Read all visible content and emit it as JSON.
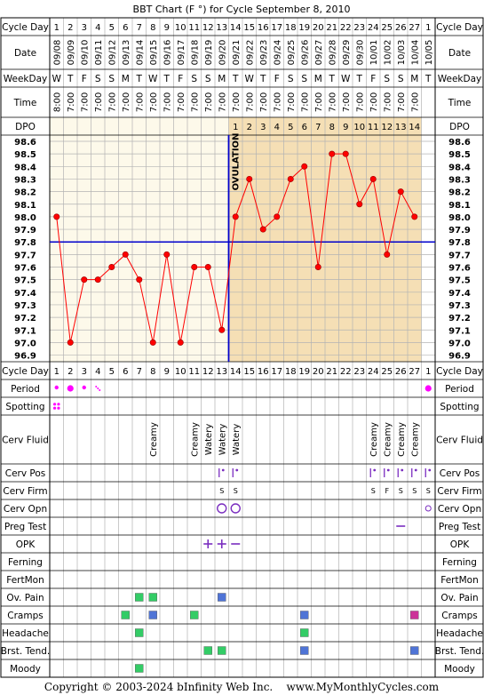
{
  "chart_data": {
    "type": "line",
    "title": "BBT Chart (F °) for Cycle September 8, 2010",
    "footer": "Copyright © 2003-2024 bInfinity Web Inc.    www.MyMonthlyCycles.com",
    "ovulation_label": "OVULATION",
    "ovulation_after_day": 13,
    "row_labels": {
      "cycle_day": "Cycle Day",
      "date": "Date",
      "weekday": "WeekDay",
      "time": "Time",
      "dpo": "DPO",
      "cycle_day_bottom": "Cycle Day"
    },
    "cycle_days": [
      "1",
      "2",
      "3",
      "4",
      "5",
      "6",
      "7",
      "8",
      "9",
      "10",
      "11",
      "12",
      "13",
      "14",
      "15",
      "16",
      "17",
      "18",
      "19",
      "20",
      "21",
      "22",
      "23",
      "24",
      "25",
      "26",
      "27",
      "1"
    ],
    "dates": [
      "09/08",
      "09/09",
      "09/10",
      "09/11",
      "09/12",
      "09/13",
      "09/14",
      "09/15",
      "09/16",
      "09/17",
      "09/18",
      "09/19",
      "09/20",
      "09/21",
      "09/22",
      "09/23",
      "09/24",
      "09/25",
      "09/26",
      "09/27",
      "09/28",
      "09/29",
      "09/30",
      "10/01",
      "10/02",
      "10/03",
      "10/04",
      "10/05"
    ],
    "weekdays": [
      "W",
      "T",
      "F",
      "S",
      "S",
      "M",
      "T",
      "W",
      "T",
      "F",
      "S",
      "S",
      "M",
      "T",
      "W",
      "T",
      "F",
      "S",
      "S",
      "M",
      "T",
      "W",
      "T",
      "F",
      "S",
      "S",
      "M",
      "T"
    ],
    "times": [
      "8:00",
      "7:00",
      "7:00",
      "7:00",
      "7:00",
      "7:00",
      "7:00",
      "7:00",
      "7:00",
      "7:00",
      "7:00",
      "7:00",
      "7:00",
      "7:00",
      "7:00",
      "7:00",
      "7:00",
      "7:00",
      "7:00",
      "7:00",
      "7:00",
      "7:00",
      "7:00",
      "7:00",
      "7:00",
      "7:00",
      "7:00",
      ""
    ],
    "dpo": [
      "",
      "",
      "",
      "",
      "",
      "",
      "",
      "",
      "",
      "",
      "",
      "",
      "",
      "1",
      "2",
      "3",
      "4",
      "5",
      "6",
      "7",
      "8",
      "9",
      "10",
      "11",
      "12",
      "13",
      "14",
      ""
    ],
    "y_ticks": [
      "98.6",
      "98.5",
      "98.4",
      "98.3",
      "98.2",
      "98.1",
      "98.0",
      "97.9",
      "97.8",
      "97.7",
      "97.6",
      "97.5",
      "97.4",
      "97.3",
      "97.2",
      "97.1",
      "97.0",
      "96.9"
    ],
    "ylim": [
      96.9,
      98.6
    ],
    "coverline": 97.8,
    "temperatures": [
      98.0,
      97.0,
      97.5,
      97.5,
      97.6,
      97.7,
      97.5,
      97.0,
      97.7,
      97.0,
      97.6,
      97.6,
      97.1,
      98.0,
      98.3,
      97.9,
      98.0,
      98.3,
      98.4,
      97.6,
      98.5,
      98.5,
      98.1,
      98.3,
      97.7,
      98.2,
      98.0,
      null
    ],
    "colors": {
      "line": "#ff0000",
      "ovulation": "#0000cc",
      "coverline": "#0000cc",
      "pre_bg": "#fdf9ea",
      "post_bg": "#f5dfb5",
      "grid": "#b3b3b3",
      "period": "#ff00ff",
      "green": "#33cc66",
      "blue": "#4f74d6",
      "magenta": "#cc3399",
      "purple": "#7a2dbf"
    },
    "observation_rows": [
      {
        "key": "period",
        "label": "Period",
        "items": [
          {
            "day": 1,
            "mark": "dot-s"
          },
          {
            "day": 2,
            "mark": "dot-m"
          },
          {
            "day": 3,
            "mark": "dot-s"
          },
          {
            "day": 4,
            "mark": "dots-tiny"
          },
          {
            "day": 28,
            "mark": "dot-m"
          }
        ]
      },
      {
        "key": "spotting",
        "label": "Spotting",
        "items": [
          {
            "day": 1,
            "mark": "dots-4"
          }
        ]
      },
      {
        "key": "cerv_fluid",
        "label": "Cerv Fluid",
        "items": [
          {
            "day": 8,
            "text": "Creamy"
          },
          {
            "day": 11,
            "text": "Creamy"
          },
          {
            "day": 12,
            "text": "Watery"
          },
          {
            "day": 13,
            "text": "Watery"
          },
          {
            "day": 14,
            "text": "Watery"
          },
          {
            "day": 24,
            "text": "Creamy"
          },
          {
            "day": 25,
            "text": "Creamy"
          },
          {
            "day": 26,
            "text": "Creamy"
          },
          {
            "day": 27,
            "text": "Creamy"
          }
        ]
      },
      {
        "key": "cerv_pos",
        "label": "Cerv Pos",
        "items": [
          {
            "day": 13,
            "mark": "pos"
          },
          {
            "day": 14,
            "mark": "pos"
          },
          {
            "day": 24,
            "mark": "pos"
          },
          {
            "day": 25,
            "mark": "pos"
          },
          {
            "day": 26,
            "mark": "pos"
          },
          {
            "day": 27,
            "mark": "pos"
          },
          {
            "day": 28,
            "mark": "pos"
          }
        ]
      },
      {
        "key": "cerv_firm",
        "label": "Cerv Firm",
        "items": [
          {
            "day": 13,
            "text": "S"
          },
          {
            "day": 14,
            "text": "S"
          },
          {
            "day": 24,
            "text": "S"
          },
          {
            "day": 25,
            "text": "F"
          },
          {
            "day": 26,
            "text": "S"
          },
          {
            "day": 27,
            "text": "S"
          },
          {
            "day": 28,
            "text": "S"
          }
        ]
      },
      {
        "key": "cerv_opn",
        "label": "Cerv Opn",
        "items": [
          {
            "day": 13,
            "mark": "ring-l"
          },
          {
            "day": 14,
            "mark": "ring-l"
          },
          {
            "day": 28,
            "mark": "ring-s"
          }
        ]
      },
      {
        "key": "preg_test",
        "label": "Preg Test",
        "items": [
          {
            "day": 26,
            "mark": "minus"
          }
        ]
      },
      {
        "key": "opk",
        "label": "OPK",
        "items": [
          {
            "day": 12,
            "mark": "plus"
          },
          {
            "day": 13,
            "mark": "plus"
          },
          {
            "day": 14,
            "mark": "minus"
          }
        ]
      },
      {
        "key": "ferning",
        "label": "Ferning",
        "items": []
      },
      {
        "key": "fertmon",
        "label": "FertMon",
        "items": []
      },
      {
        "key": "ov_pain",
        "label": "Ov. Pain",
        "items": [
          {
            "day": 7,
            "mark": "sq-green"
          },
          {
            "day": 8,
            "mark": "sq-green"
          },
          {
            "day": 13,
            "mark": "sq-blue"
          }
        ]
      },
      {
        "key": "cramps",
        "label": "Cramps",
        "items": [
          {
            "day": 6,
            "mark": "sq-green"
          },
          {
            "day": 8,
            "mark": "sq-blue"
          },
          {
            "day": 11,
            "mark": "sq-green"
          },
          {
            "day": 19,
            "mark": "sq-blue"
          },
          {
            "day": 27,
            "mark": "sq-magenta"
          }
        ]
      },
      {
        "key": "headache",
        "label": "Headache",
        "items": [
          {
            "day": 7,
            "mark": "sq-green"
          },
          {
            "day": 19,
            "mark": "sq-green"
          }
        ]
      },
      {
        "key": "brst_tend",
        "label": "Brst. Tend.",
        "items": [
          {
            "day": 12,
            "mark": "sq-green"
          },
          {
            "day": 13,
            "mark": "sq-green"
          },
          {
            "day": 19,
            "mark": "sq-blue"
          },
          {
            "day": 27,
            "mark": "sq-blue"
          }
        ]
      },
      {
        "key": "moody",
        "label": "Moody",
        "items": [
          {
            "day": 7,
            "mark": "sq-green"
          }
        ]
      }
    ]
  }
}
